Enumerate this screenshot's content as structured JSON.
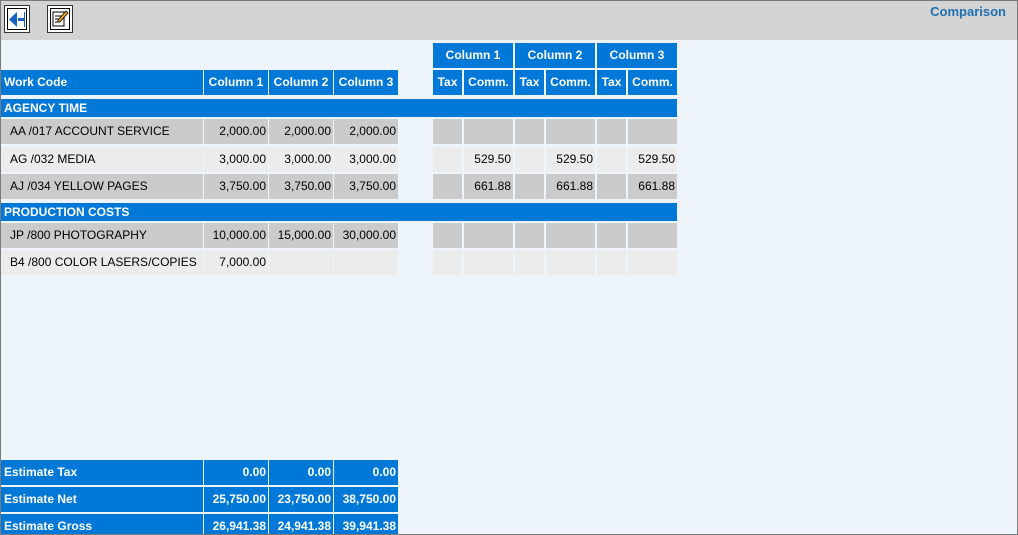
{
  "page_title": "Comparison",
  "toolbar": {
    "back_icon": "back-arrow-icon",
    "edit_icon": "edit-pencil-icon"
  },
  "left_table": {
    "headers": [
      "Work Code",
      "Column 1",
      "Column 2",
      "Column 3"
    ],
    "sections": [
      {
        "title": "AGENCY TIME",
        "rows": [
          {
            "label": "AA /017 ACCOUNT SERVICE",
            "values": [
              "2,000.00",
              "2,000.00",
              "2,000.00"
            ]
          },
          {
            "label": "AG /032 MEDIA",
            "values": [
              "3,000.00",
              "3,000.00",
              "3,000.00"
            ]
          },
          {
            "label": "AJ /034 YELLOW PAGES",
            "values": [
              "3,750.00",
              "3,750.00",
              "3,750.00"
            ]
          }
        ]
      },
      {
        "title": "PRODUCTION COSTS",
        "rows": [
          {
            "label": "JP /800 PHOTOGRAPHY",
            "values": [
              "10,000.00",
              "15,000.00",
              "30,000.00"
            ]
          },
          {
            "label": "B4 /800 COLOR LASERS/COPIES",
            "values": [
              "7,000.00",
              "",
              ""
            ]
          }
        ]
      }
    ],
    "totals": [
      {
        "label": "Estimate Tax",
        "values": [
          "0.00",
          "0.00",
          "0.00"
        ]
      },
      {
        "label": "Estimate Net",
        "values": [
          "25,750.00",
          "23,750.00",
          "38,750.00"
        ]
      },
      {
        "label": "Estimate Gross",
        "values": [
          "26,941.38",
          "24,941.38",
          "39,941.38"
        ]
      }
    ]
  },
  "right_table": {
    "group_headers": [
      "Column 1",
      "Column 2",
      "Column 3"
    ],
    "sub_headers": [
      "Tax",
      "Comm.",
      "Tax",
      "Comm.",
      "Tax",
      "Comm."
    ],
    "rows": [
      [
        "",
        "",
        "",
        "",
        "",
        ""
      ],
      [
        "",
        "529.50",
        "",
        "529.50",
        "",
        "529.50"
      ],
      [
        "",
        "661.88",
        "",
        "661.88",
        "",
        "661.88"
      ],
      [
        "",
        "",
        "",
        "",
        "",
        ""
      ],
      [
        "",
        "",
        "",
        "",
        "",
        ""
      ]
    ]
  }
}
